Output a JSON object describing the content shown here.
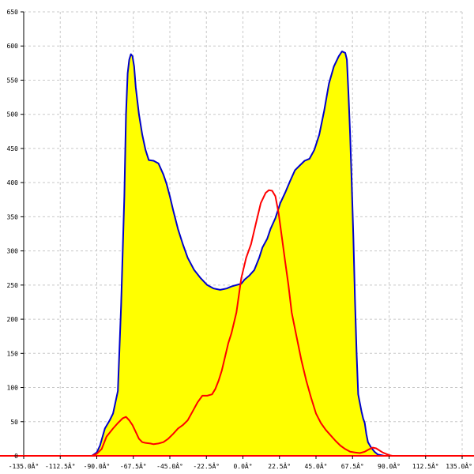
{
  "chart_data": {
    "type": "area",
    "xlim": [
      -135,
      135
    ],
    "ylim": [
      0,
      650
    ],
    "x_ticks": [
      -135,
      -112.5,
      -90,
      -67.5,
      -45,
      -22.5,
      0,
      22.5,
      45,
      67.5,
      90,
      112.5,
      135
    ],
    "x_tick_labels": [
      "-135.0Â°",
      "-112.5Â°",
      "-90.0Â°",
      "-67.5Â°",
      "-45.0Â°",
      "-22.5Â°",
      "0.0Â°",
      "22.5Â°",
      "45.0Â°",
      "67.5Â°",
      "90.0Â°",
      "112.5Â°",
      "135.0Â°"
    ],
    "y_ticks": [
      50,
      100,
      150,
      200,
      250,
      300,
      350,
      400,
      450,
      500,
      550,
      600,
      650
    ],
    "y_tick_labels": [
      "50",
      "100",
      "150",
      "200",
      "250",
      "300",
      "350",
      "400",
      "450",
      "500",
      "550",
      "600",
      "650"
    ],
    "grid": true,
    "colors": {
      "fill": "#ffff00",
      "outline": "#0000cc",
      "line": "#ff0000",
      "axis": "#ff0000"
    },
    "series": [
      {
        "kind": "area",
        "x": [
          -135,
          -93,
          -90,
          -88,
          -85,
          -82,
          -80,
          -77,
          -75,
          -73,
          -72,
          -71,
          -70,
          -69,
          -68,
          -67,
          -66,
          -64,
          -62,
          -60,
          -58,
          -55,
          -52,
          -49,
          -47,
          -45,
          -43,
          -40,
          -37,
          -34,
          -30,
          -26,
          -22,
          -18,
          -14,
          -10,
          -7,
          -4,
          -1,
          1,
          4,
          7,
          10,
          12,
          15,
          17,
          20,
          23,
          26,
          29,
          32,
          35,
          38,
          41,
          44,
          47,
          50,
          53,
          56,
          59,
          61,
          63,
          64,
          65,
          66,
          67,
          68,
          69,
          70,
          71,
          73,
          74,
          75,
          76,
          77,
          79,
          81,
          83,
          85,
          87,
          89,
          91,
          135
        ],
        "y": [
          0,
          0,
          5,
          15,
          40,
          52,
          62,
          95,
          220,
          380,
          500,
          560,
          580,
          588,
          585,
          570,
          540,
          500,
          470,
          448,
          433,
          432,
          428,
          412,
          398,
          380,
          360,
          332,
          310,
          290,
          272,
          260,
          250,
          245,
          243,
          245,
          248,
          250,
          252,
          258,
          264,
          272,
          290,
          305,
          318,
          332,
          348,
          370,
          385,
          402,
          418,
          425,
          432,
          435,
          448,
          470,
          505,
          545,
          570,
          585,
          592,
          590,
          580,
          530,
          470,
          400,
          320,
          230,
          150,
          90,
          65,
          55,
          48,
          32,
          20,
          12,
          6,
          2,
          1,
          0,
          0,
          0,
          0
        ]
      },
      {
        "kind": "line",
        "x": [
          -135,
          -93,
          -90,
          -87,
          -84,
          -80,
          -77,
          -74,
          -72,
          -70,
          -68,
          -66,
          -64,
          -62,
          -60,
          -57,
          -55,
          -52,
          -49,
          -46,
          -43,
          -40,
          -37,
          -34,
          -31,
          -28,
          -25,
          -22,
          -19,
          -17,
          -15,
          -13,
          -11,
          -9,
          -7,
          -4,
          -1,
          2,
          5,
          8,
          11,
          14,
          16,
          18,
          20,
          22,
          24,
          26,
          28,
          30,
          33,
          36,
          39,
          42,
          45,
          48,
          51,
          54,
          57,
          60,
          63,
          66,
          69,
          72,
          75,
          78,
          80,
          82,
          84,
          86,
          88,
          90,
          92,
          135
        ],
        "y": [
          0,
          0,
          3,
          10,
          28,
          40,
          48,
          55,
          57,
          52,
          45,
          35,
          25,
          20,
          19,
          18,
          17,
          18,
          20,
          25,
          32,
          40,
          45,
          52,
          65,
          78,
          88,
          88,
          90,
          98,
          110,
          125,
          145,
          165,
          180,
          210,
          260,
          290,
          310,
          340,
          370,
          385,
          389,
          388,
          380,
          355,
          320,
          285,
          250,
          210,
          175,
          140,
          110,
          85,
          62,
          48,
          38,
          30,
          22,
          15,
          10,
          6,
          5,
          4,
          6,
          10,
          12,
          11,
          8,
          5,
          3,
          1,
          0,
          0
        ]
      }
    ]
  }
}
